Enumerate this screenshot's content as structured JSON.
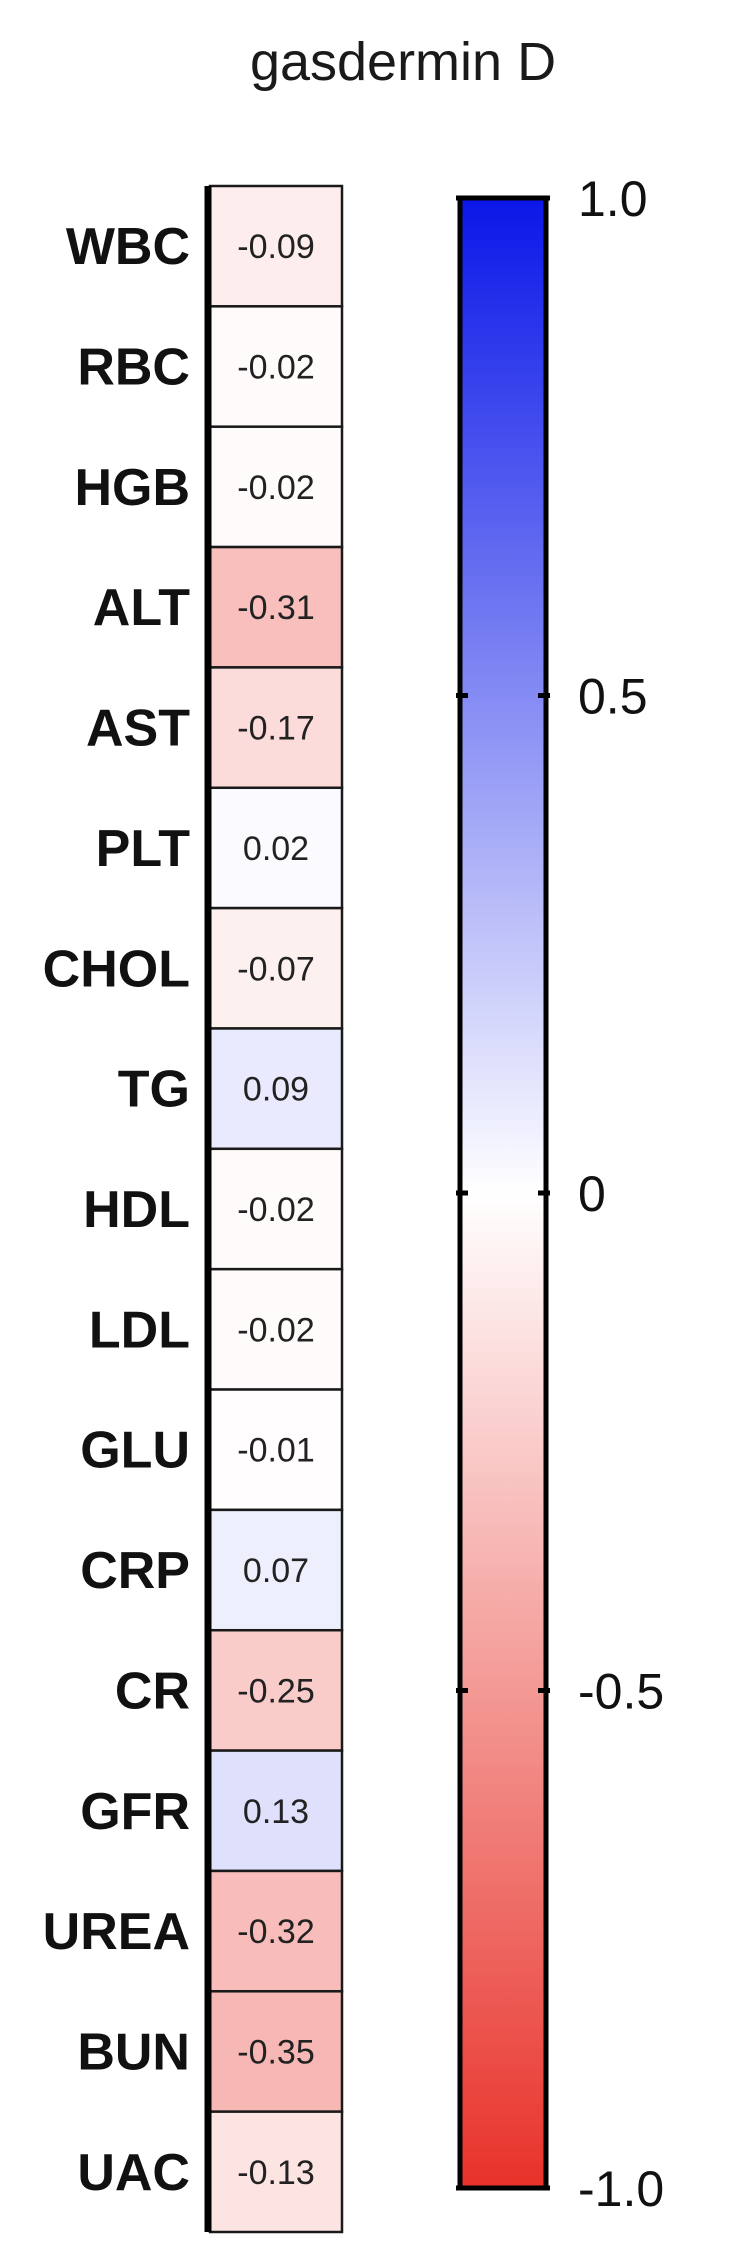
{
  "chart_data": {
    "type": "heatmap",
    "title": "gasdermin D",
    "series_name": "gasdermin D",
    "categories": [
      "WBC",
      "RBC",
      "HGB",
      "ALT",
      "AST",
      "PLT",
      "CHOL",
      "TG",
      "HDL",
      "LDL",
      "GLU",
      "CRP",
      "CR",
      "GFR",
      "UREA",
      "BUN",
      "UAC"
    ],
    "values": [
      -0.09,
      -0.02,
      -0.02,
      -0.31,
      -0.17,
      0.02,
      -0.07,
      0.09,
      -0.02,
      -0.02,
      -0.01,
      0.07,
      -0.25,
      0.13,
      -0.32,
      -0.35,
      -0.13
    ],
    "value_labels": [
      "-0.09",
      "-0.02",
      "-0.02",
      "-0.31",
      "-0.17",
      "0.02",
      "-0.07",
      "0.09",
      "-0.02",
      "-0.02",
      "-0.01",
      "0.07",
      "-0.25",
      "0.13",
      "-0.32",
      "-0.35",
      "-0.13"
    ],
    "colorbar": {
      "range": [
        -1.0,
        1.0
      ],
      "ticks": [
        1.0,
        0.5,
        0,
        -0.5,
        -1.0
      ],
      "tick_labels": [
        "1.0",
        "0.5",
        "0",
        "-0.5",
        "-1.0"
      ],
      "color_min": "#e8322a",
      "color_mid": "#ffffff",
      "color_max": "#0a17e8",
      "placement": "right"
    },
    "grid": false
  }
}
